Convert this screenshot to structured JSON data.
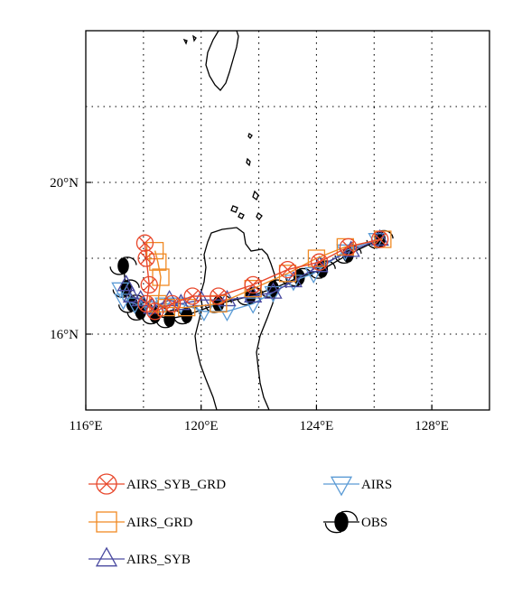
{
  "map": {
    "lon_range": [
      116,
      130
    ],
    "lat_range": [
      14,
      24
    ],
    "x_ticks": [
      {
        "value": 116,
        "label": "116°E"
      },
      {
        "value": 120,
        "label": "120°E"
      },
      {
        "value": 124,
        "label": "124°E"
      },
      {
        "value": 128,
        "label": "128°E"
      }
    ],
    "y_ticks": [
      {
        "value": 20,
        "label": "20°N"
      },
      {
        "value": 16,
        "label": "16°N"
      }
    ],
    "grid": "dotted"
  },
  "chart_data": {
    "type": "line",
    "x_unit": "longitude (°E)",
    "y_unit": "latitude (°N)",
    "series": [
      {
        "name": "AIRS_SYB_GRD",
        "color": "#e8472b",
        "marker": "circle-x",
        "points": [
          [
            26.2,
            18.5
          ],
          [
            25.1,
            18.3
          ],
          [
            24.1,
            17.9
          ],
          [
            23.0,
            17.7
          ],
          [
            21.8,
            17.3
          ],
          [
            20.6,
            17.0
          ],
          [
            19.7,
            17.0
          ],
          [
            19.0,
            16.8
          ],
          [
            18.4,
            16.6
          ],
          [
            18.1,
            16.8
          ],
          [
            18.2,
            17.3
          ],
          [
            18.1,
            18.0
          ],
          [
            18.05,
            18.4
          ]
        ]
      },
      {
        "name": "AIRS_GRD",
        "color": "#f08a24",
        "marker": "square",
        "points": [
          [
            26.3,
            18.5
          ],
          [
            25.0,
            18.3
          ],
          [
            24.0,
            18.0
          ],
          [
            23.0,
            17.6
          ],
          [
            21.8,
            17.2
          ],
          [
            20.6,
            16.8
          ],
          [
            19.5,
            16.7
          ],
          [
            18.8,
            16.7
          ],
          [
            18.5,
            16.8
          ],
          [
            18.6,
            17.5
          ],
          [
            18.5,
            17.9
          ],
          [
            18.4,
            18.2
          ]
        ]
      },
      {
        "name": "AIRS_SYB",
        "color": "#4a4aa0",
        "marker": "triangle-up",
        "points": [
          [
            26.2,
            18.5
          ],
          [
            25.2,
            18.2
          ],
          [
            24.1,
            17.8
          ],
          [
            23.2,
            17.4
          ],
          [
            22.5,
            17.1
          ],
          [
            21.8,
            17.0
          ],
          [
            20.9,
            16.9
          ],
          [
            20.0,
            16.9
          ],
          [
            19.3,
            16.8
          ],
          [
            18.9,
            16.9
          ],
          [
            18.3,
            16.7
          ],
          [
            17.9,
            16.9
          ],
          [
            17.6,
            17.0
          ],
          [
            17.4,
            17.3
          ]
        ]
      },
      {
        "name": "AIRS",
        "color": "#5b9bd5",
        "marker": "triangle-down",
        "points": [
          [
            26.1,
            18.5
          ],
          [
            25.0,
            18.2
          ],
          [
            23.9,
            17.6
          ],
          [
            23.2,
            17.4
          ],
          [
            22.5,
            17.1
          ],
          [
            21.8,
            16.8
          ],
          [
            20.9,
            16.6
          ],
          [
            20.1,
            16.6
          ],
          [
            19.3,
            16.8
          ],
          [
            18.7,
            16.8
          ],
          [
            18.2,
            16.7
          ],
          [
            17.7,
            16.8
          ],
          [
            17.3,
            16.9
          ],
          [
            17.2,
            17.2
          ]
        ]
      },
      {
        "name": "OBS",
        "color": "#000000",
        "marker": "typhoon",
        "points": [
          [
            26.2,
            18.5
          ],
          [
            25.1,
            18.1
          ],
          [
            24.2,
            17.7
          ],
          [
            23.4,
            17.5
          ],
          [
            22.5,
            17.2
          ],
          [
            21.7,
            17.0
          ],
          [
            20.6,
            16.8
          ],
          [
            19.5,
            16.5
          ],
          [
            18.9,
            16.4
          ],
          [
            18.4,
            16.5
          ],
          [
            17.9,
            16.6
          ],
          [
            17.6,
            16.8
          ],
          [
            17.4,
            17.2
          ],
          [
            17.3,
            17.8
          ]
        ]
      }
    ]
  },
  "legend": [
    {
      "label": "AIRS_SYB_GRD",
      "marker": "circle-x",
      "color": "#e8472b"
    },
    {
      "label": "AIRS",
      "marker": "triangle-down",
      "color": "#5b9bd5"
    },
    {
      "label": "AIRS_GRD",
      "marker": "square",
      "color": "#f08a24"
    },
    {
      "label": "OBS",
      "marker": "typhoon",
      "color": "#000000"
    },
    {
      "label": "AIRS_SYB",
      "marker": "triangle-up",
      "color": "#4a4aa0"
    }
  ]
}
